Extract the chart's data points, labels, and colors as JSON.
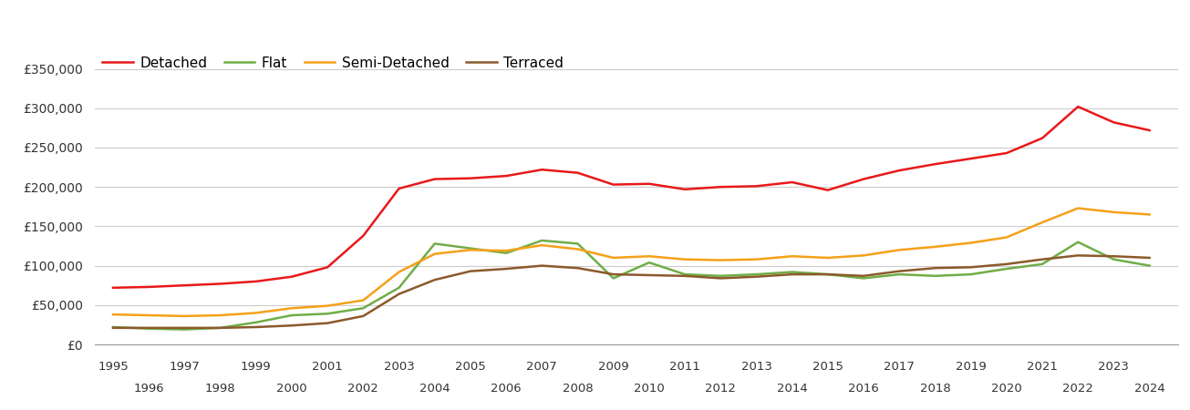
{
  "series": {
    "Detached": {
      "color": "#e8191a",
      "years": [
        1995,
        1996,
        1997,
        1998,
        1999,
        2000,
        2001,
        2002,
        2003,
        2004,
        2005,
        2006,
        2007,
        2008,
        2009,
        2010,
        2011,
        2012,
        2013,
        2014,
        2015,
        2016,
        2017,
        2018,
        2019,
        2020,
        2021,
        2022,
        2023,
        2024
      ],
      "values": [
        72000,
        73000,
        75000,
        77000,
        80000,
        86000,
        98000,
        138000,
        198000,
        210000,
        211000,
        214000,
        222000,
        218000,
        203000,
        204000,
        197000,
        200000,
        201000,
        206000,
        196000,
        210000,
        221000,
        229000,
        236000,
        243000,
        262000,
        302000,
        282000,
        272000
      ]
    },
    "Flat": {
      "color": "#70ad47",
      "years": [
        1995,
        1996,
        1997,
        1998,
        1999,
        2000,
        2001,
        2002,
        2003,
        2004,
        2005,
        2006,
        2007,
        2008,
        2009,
        2010,
        2011,
        2012,
        2013,
        2014,
        2015,
        2016,
        2017,
        2018,
        2019,
        2020,
        2021,
        2022,
        2023,
        2024
      ],
      "values": [
        22000,
        20000,
        19000,
        21000,
        28000,
        37000,
        39000,
        46000,
        72000,
        128000,
        122000,
        116000,
        132000,
        128000,
        84000,
        104000,
        89000,
        87000,
        89000,
        92000,
        89000,
        84000,
        89000,
        87000,
        89000,
        96000,
        102000,
        130000,
        108000,
        100000
      ]
    },
    "Semi-Detached": {
      "color": "#f4a119",
      "years": [
        1995,
        1996,
        1997,
        1998,
        1999,
        2000,
        2001,
        2002,
        2003,
        2004,
        2005,
        2006,
        2007,
        2008,
        2009,
        2010,
        2011,
        2012,
        2013,
        2014,
        2015,
        2016,
        2017,
        2018,
        2019,
        2020,
        2021,
        2022,
        2023,
        2024
      ],
      "values": [
        38000,
        37000,
        36000,
        37000,
        40000,
        46000,
        49000,
        56000,
        92000,
        115000,
        120000,
        119000,
        126000,
        121000,
        110000,
        112000,
        108000,
        107000,
        108000,
        112000,
        110000,
        113000,
        120000,
        124000,
        129000,
        136000,
        155000,
        173000,
        168000,
        165000
      ]
    },
    "Terraced": {
      "color": "#8b5a2b",
      "years": [
        1995,
        1996,
        1997,
        1998,
        1999,
        2000,
        2001,
        2002,
        2003,
        2004,
        2005,
        2006,
        2007,
        2008,
        2009,
        2010,
        2011,
        2012,
        2013,
        2014,
        2015,
        2016,
        2017,
        2018,
        2019,
        2020,
        2021,
        2022,
        2023,
        2024
      ],
      "values": [
        21000,
        21000,
        21000,
        21000,
        22000,
        24000,
        27000,
        36000,
        64000,
        82000,
        93000,
        96000,
        100000,
        97000,
        89000,
        88000,
        87000,
        84000,
        86000,
        89000,
        89000,
        87000,
        93000,
        97000,
        98000,
        102000,
        108000,
        113000,
        112000,
        110000
      ]
    }
  },
  "ylim": [
    0,
    375000
  ],
  "yticks": [
    0,
    50000,
    100000,
    150000,
    200000,
    250000,
    300000,
    350000
  ],
  "xlim": [
    1994.5,
    2024.8
  ],
  "xticks_top": [
    1995,
    1997,
    1999,
    2001,
    2003,
    2005,
    2007,
    2009,
    2011,
    2013,
    2015,
    2017,
    2019,
    2021,
    2023
  ],
  "xticks_bottom": [
    1996,
    1998,
    2000,
    2002,
    2004,
    2006,
    2008,
    2010,
    2012,
    2014,
    2016,
    2018,
    2020,
    2022,
    2024
  ],
  "background_color": "#ffffff",
  "grid_color": "#cccccc",
  "line_width": 1.8,
  "legend_order": [
    "Detached",
    "Flat",
    "Semi-Detached",
    "Terraced"
  ]
}
